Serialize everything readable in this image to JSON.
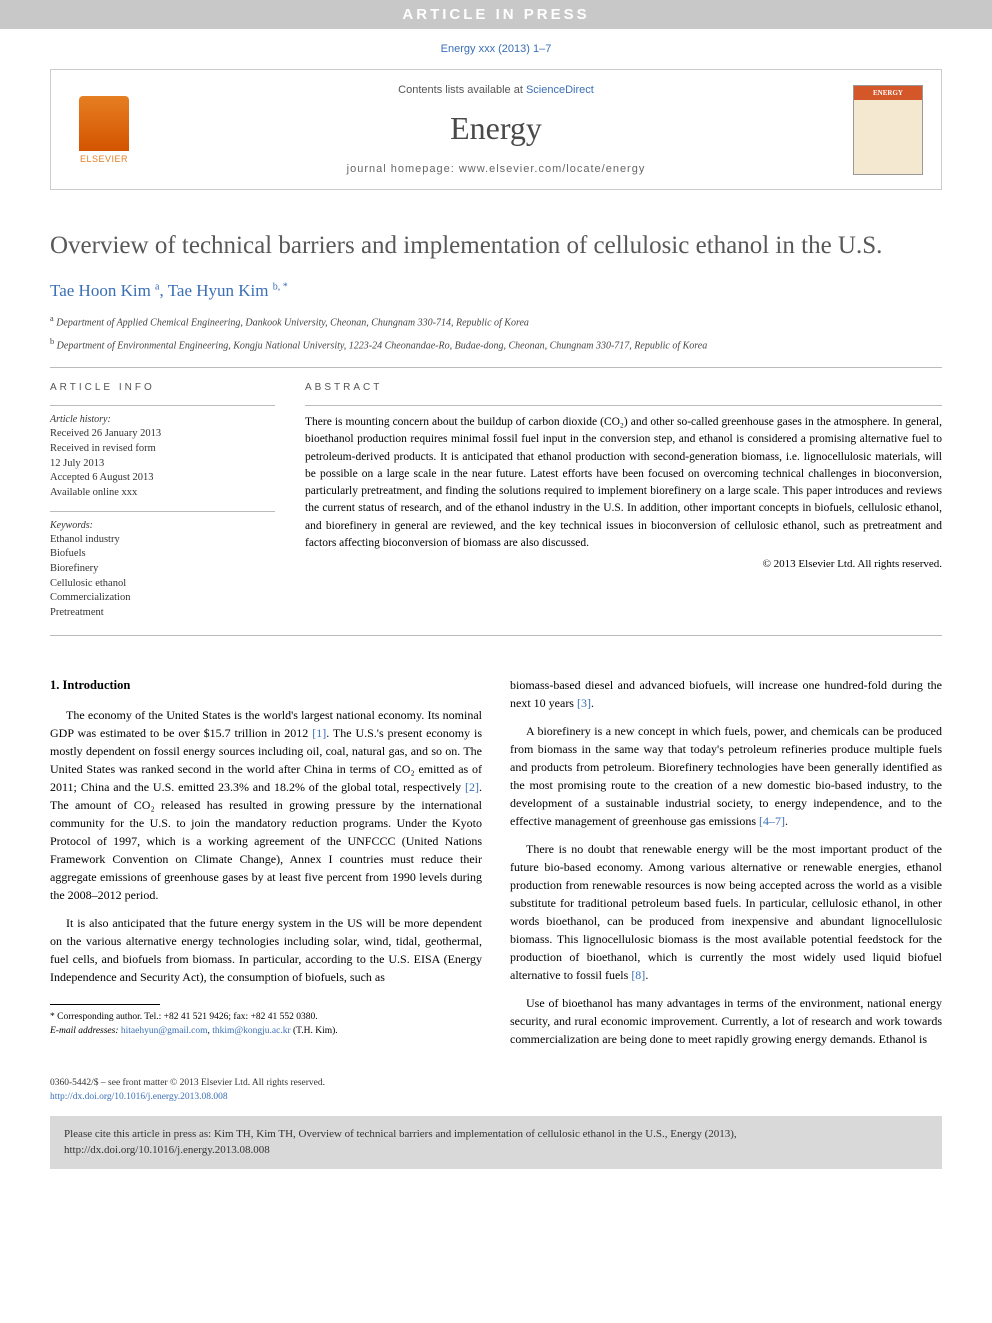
{
  "banner": "ARTICLE IN PRESS",
  "citation_top": "Energy xxx (2013) 1–7",
  "header": {
    "contents_prefix": "Contents lists available at ",
    "contents_link": "ScienceDirect",
    "journal": "Energy",
    "homepage_label": "journal homepage: ",
    "homepage_url": "www.elsevier.com/locate/energy",
    "publisher": "ELSEVIER",
    "cover_label": "ENERGY"
  },
  "title": "Overview of technical barriers and implementation of cellulosic ethanol in the U.S.",
  "authors": [
    {
      "name": "Tae Hoon Kim",
      "mark": "a"
    },
    {
      "name": "Tae Hyun Kim",
      "mark": "b, *"
    }
  ],
  "authors_line": "Tae Hoon Kim ᵃ, Tae Hyun Kim ᵇ· *",
  "affiliations": [
    {
      "mark": "a",
      "text": "Department of Applied Chemical Engineering, Dankook University, Cheonan, Chungnam 330-714, Republic of Korea"
    },
    {
      "mark": "b",
      "text": "Department of Environmental Engineering, Kongju National University, 1223-24 Cheonandae-Ro, Budae-dong, Cheonan, Chungnam 330-717, Republic of Korea"
    }
  ],
  "article_info": {
    "label": "ARTICLE INFO",
    "history_label": "Article history:",
    "history": [
      "Received 26 January 2013",
      "Received in revised form",
      "12 July 2013",
      "Accepted 6 August 2013",
      "Available online xxx"
    ],
    "keywords_label": "Keywords:",
    "keywords": [
      "Ethanol industry",
      "Biofuels",
      "Biorefinery",
      "Cellulosic ethanol",
      "Commercialization",
      "Pretreatment"
    ]
  },
  "abstract": {
    "label": "ABSTRACT",
    "text": "There is mounting concern about the buildup of carbon dioxide (CO₂) and other so-called greenhouse gases in the atmosphere. In general, bioethanol production requires minimal fossil fuel input in the conversion step, and ethanol is considered a promising alternative fuel to petroleum-derived products. It is anticipated that ethanol production with second-generation biomass, i.e. lignocellulosic materials, will be possible on a large scale in the near future. Latest efforts have been focused on overcoming technical challenges in bioconversion, particularly pretreatment, and finding the solutions required to implement biorefinery on a large scale. This paper introduces and reviews the current status of research, and of the ethanol industry in the U.S. In addition, other important concepts in biofuels, cellulosic ethanol, and biorefinery in general are reviewed, and the key technical issues in bioconversion of cellulosic ethanol, such as pretreatment and factors affecting bioconversion of biomass are also discussed.",
    "copyright": "© 2013 Elsevier Ltd. All rights reserved."
  },
  "body": {
    "section_heading": "1.  Introduction",
    "p1": "The economy of the United States is the world's largest national economy. Its nominal GDP was estimated to be over $15.7 trillion in 2012 [1]. The U.S.'s present economy is mostly dependent on fossil energy sources including oil, coal, natural gas, and so on. The United States was ranked second in the world after China in terms of CO₂ emitted as of 2011; China and the U.S. emitted 23.3% and 18.2% of the global total, respectively [2]. The amount of CO₂ released has resulted in growing pressure by the international community for the U.S. to join the mandatory reduction programs. Under the Kyoto Protocol of 1997, which is a working agreement of the UNFCCC (United Nations Framework Convention on Climate Change), Annex I countries must reduce their aggregate emissions of greenhouse gases by at least five percent from 1990 levels during the 2008–2012 period.",
    "p2": "It is also anticipated that the future energy system in the US will be more dependent on the various alternative energy technologies including solar, wind, tidal, geothermal, fuel cells, and biofuels from biomass. In particular, according to the U.S. EISA (Energy Independence and Security Act), the consumption of biofuels, such as",
    "p3": "biomass-based diesel and advanced biofuels, will increase one hundred-fold during the next 10 years [3].",
    "p4": "A biorefinery is a new concept in which fuels, power, and chemicals can be produced from biomass in the same way that today's petroleum refineries produce multiple fuels and products from petroleum. Biorefinery technologies have been generally identified as the most promising route to the creation of a new domestic bio-based industry, to the development of a sustainable industrial society, to energy independence, and to the effective management of greenhouse gas emissions [4–7].",
    "p5": "There is no doubt that renewable energy will be the most important product of the future bio-based economy. Among various alternative or renewable energies, ethanol production from renewable resources is now being accepted across the world as a visible substitute for traditional petroleum based fuels. In particular, cellulosic ethanol, in other words bioethanol, can be produced from inexpensive and abundant lignocellulosic biomass. This lignocellulosic biomass is the most available potential feedstock for the production of bioethanol, which is currently the most widely used liquid biofuel alternative to fossil fuels [8].",
    "p6": "Use of bioethanol has many advantages in terms of the environment, national energy security, and rural economic improvement. Currently, a lot of research and work towards commercialization are being done to meet rapidly growing energy demands. Ethanol is"
  },
  "footnote": {
    "corr": "* Corresponding author. Tel.: +82 41 521 9426; fax: +82 41 552 0380.",
    "emails_label": "E-mail addresses: ",
    "email1": "hitaehyun@gmail.com",
    "email2": "thkim@kongju.ac.kr",
    "email_suffix": " (T.H. Kim)."
  },
  "front_matter": "0360-5442/$ – see front matter © 2013 Elsevier Ltd. All rights reserved.",
  "doi": "http://dx.doi.org/10.1016/j.energy.2013.08.008",
  "cite_box": "Please cite this article in press as: Kim TH, Kim TH, Overview of technical barriers and implementation of cellulosic ethanol in the U.S., Energy (2013), http://dx.doi.org/10.1016/j.energy.2013.08.008"
}
